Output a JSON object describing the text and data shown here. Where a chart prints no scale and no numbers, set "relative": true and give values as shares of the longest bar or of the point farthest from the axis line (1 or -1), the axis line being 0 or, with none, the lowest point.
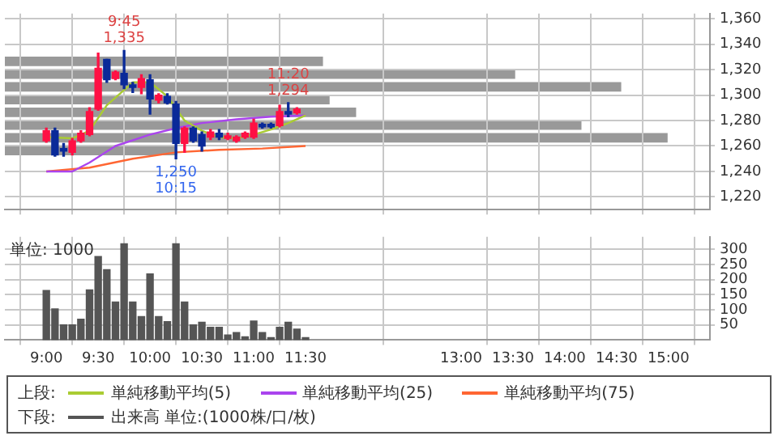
{
  "chart_data": [
    {
      "type": "candlestick",
      "x": [
        9,
        9.0833,
        9.1667,
        9.25,
        9.3333,
        9.4167,
        9.5,
        9.5833,
        9.6667,
        9.75,
        9.8333,
        9.9167,
        10,
        10.0833,
        10.1667,
        10.25,
        10.3333,
        10.4167,
        10.5,
        10.5833,
        10.6667,
        10.75,
        10.8333,
        10.9167,
        11,
        11.0833,
        11.1667,
        11.25,
        11.3333,
        11.4167
      ],
      "ohlc": [
        [
          1264,
          1274,
          1263,
          1272
        ],
        [
          1272,
          1274,
          1252,
          1253
        ],
        [
          1258,
          1262,
          1252,
          1256
        ],
        [
          1255,
          1266,
          1253,
          1264
        ],
        [
          1264,
          1272,
          1263,
          1270
        ],
        [
          1269,
          1290,
          1268,
          1287
        ],
        [
          1289,
          1333,
          1288,
          1321
        ],
        [
          1328,
          1328,
          1310,
          1312
        ],
        [
          1313,
          1319,
          1312,
          1318
        ],
        [
          1317,
          1335,
          1305,
          1308
        ],
        [
          1308,
          1310,
          1302,
          1306
        ],
        [
          1306,
          1316,
          1301,
          1313
        ],
        [
          1312,
          1316,
          1285,
          1297
        ],
        [
          1296,
          1301,
          1294,
          1300
        ],
        [
          1299,
          1301,
          1293,
          1294
        ],
        [
          1293,
          1295,
          1250,
          1262
        ],
        [
          1262,
          1275,
          1255,
          1274
        ],
        [
          1274,
          1275,
          1263,
          1264
        ],
        [
          1269,
          1271,
          1256,
          1260
        ],
        [
          1267,
          1273,
          1265,
          1271
        ],
        [
          1270,
          1273,
          1265,
          1267
        ],
        [
          1266,
          1270,
          1265,
          1268
        ],
        [
          1264,
          1268,
          1263,
          1267
        ],
        [
          1267,
          1271,
          1266,
          1270
        ],
        [
          1267,
          1281,
          1266,
          1278
        ],
        [
          1277,
          1278,
          1274,
          1275
        ],
        [
          1277,
          1278,
          1274,
          1275
        ],
        [
          1276,
          1292,
          1275,
          1287
        ],
        [
          1287,
          1294,
          1283,
          1285
        ],
        [
          1286,
          1290,
          1285,
          1289
        ]
      ],
      "series": [
        {
          "type": "line",
          "name": "単純移動平均(5)",
          "color": "#aacc33",
          "x": [
            9,
            9.25,
            9.4167,
            9.5833,
            9.8333,
            10,
            10.1667,
            10.3333,
            10.5,
            10.6667,
            10.8333,
            11,
            11.1667,
            11.3333,
            11.5
          ],
          "values": [
            1267,
            1266,
            1272,
            1292,
            1310,
            1310,
            1299,
            1280,
            1272,
            1267,
            1266,
            1269,
            1273,
            1278,
            1284
          ]
        },
        {
          "type": "line",
          "name": "単純移動平均(25)",
          "color": "#aa44ee",
          "x": [
            9,
            9.25,
            9.4167,
            9.6667,
            10,
            10.25,
            10.5,
            10.8333,
            11.1667,
            11.5
          ],
          "values": [
            1240,
            1240,
            1247,
            1260,
            1269,
            1274,
            1278,
            1281,
            1283,
            1284
          ]
        },
        {
          "type": "line",
          "name": "単純移動平均(75)",
          "color": "#ff6633",
          "x": [
            9,
            9.4167,
            9.8333,
            10.25,
            10.6667,
            11.0833,
            11.5
          ],
          "values": [
            1240,
            1243,
            1250,
            1255,
            1257,
            1258,
            1260
          ]
        }
      ],
      "annotations": [
        {
          "text": "9:45\n1,335",
          "x": 9.75,
          "y": 1335
        },
        {
          "text": "1,250\n10:15",
          "x": 10.25,
          "y": 1250
        },
        {
          "text": "11:20\n1,294",
          "x": 11.3333,
          "y": 1294
        }
      ],
      "xlim": [
        8.6,
        15.4
      ],
      "xticks": [
        {
          "value": 9,
          "label": null
        },
        {
          "value": 9.5,
          "label": null
        },
        {
          "value": 10,
          "label": null
        },
        {
          "value": 10.5,
          "label": null
        },
        {
          "value": 11,
          "label": null
        },
        {
          "value": 11.5,
          "label": null
        },
        {
          "value": 13,
          "label": null
        },
        {
          "value": 13.5,
          "label": null
        },
        {
          "value": 14,
          "label": null
        },
        {
          "value": 14.5,
          "label": null
        },
        {
          "value": 15,
          "label": null
        }
      ],
      "ylim": [
        1210,
        1364
      ],
      "yticks": [
        {
          "value": 1220,
          "label": "1,220"
        },
        {
          "value": 1240,
          "label": "1,240"
        },
        {
          "value": 1260,
          "label": "1,260"
        },
        {
          "value": 1280,
          "label": "1,280"
        },
        {
          "value": 1300,
          "label": "1,300"
        },
        {
          "value": 1320,
          "label": "1,320"
        },
        {
          "value": 1340,
          "label": "1,340"
        },
        {
          "value": 1360,
          "label": "1,360"
        }
      ],
      "tick_labels": "y",
      "grid": true,
      "legend": "bottom",
      "legend_title": "上段:"
    },
    {
      "type": "bar",
      "orientation": "horizontal",
      "relative": true,
      "categories": [
        null,
        null,
        null,
        null,
        null,
        null,
        null,
        null
      ],
      "values": [
        0.48,
        0.77,
        0.93,
        0.49,
        0.53,
        0.87,
        1,
        0.26
      ],
      "color": "#999999"
    },
    {
      "type": "bar",
      "x": [
        9,
        9.0833,
        9.1667,
        9.25,
        9.3333,
        9.4167,
        9.5,
        9.5833,
        9.6667,
        9.75,
        9.8333,
        9.9167,
        10,
        10.0833,
        10.1667,
        10.25,
        10.3333,
        10.4167,
        10.5,
        10.5833,
        10.6667,
        10.75,
        10.8333,
        10.9167,
        11,
        11.0833,
        11.1667,
        11.25,
        11.3333,
        11.4167,
        11.5
      ],
      "series": [
        {
          "name": "出来高 単位:(1000株/口/枚)",
          "color": "#555555",
          "values": [
            164,
            103,
            50,
            50,
            69,
            166,
            277,
            233,
            126,
            319,
            126,
            78,
            219,
            78,
            61,
            319,
            126,
            50,
            59,
            42,
            42,
            17,
            25,
            11,
            63,
            25,
            8,
            42,
            59,
            36,
            8
          ]
        }
      ],
      "annotations": [
        "単位: 1000"
      ],
      "xlim": [
        8.6,
        15.4
      ],
      "xticks": [
        {
          "value": 9,
          "label": "9:00"
        },
        {
          "value": 9.5,
          "label": "9:30"
        },
        {
          "value": 10,
          "label": "10:00"
        },
        {
          "value": 10.5,
          "label": "10:30"
        },
        {
          "value": 11,
          "label": "11:00"
        },
        {
          "value": 11.5,
          "label": "11:30"
        },
        {
          "value": 13,
          "label": "13:00"
        },
        {
          "value": 13.5,
          "label": "13:30"
        },
        {
          "value": 14,
          "label": "14:00"
        },
        {
          "value": 14.5,
          "label": "14:30"
        },
        {
          "value": 15,
          "label": "15:00"
        }
      ],
      "ylim": [
        0,
        342
      ],
      "yticks": [
        50,
        100,
        150,
        200,
        250,
        300
      ],
      "grid": true,
      "legend": "bottom",
      "legend_title": "下段:"
    }
  ]
}
